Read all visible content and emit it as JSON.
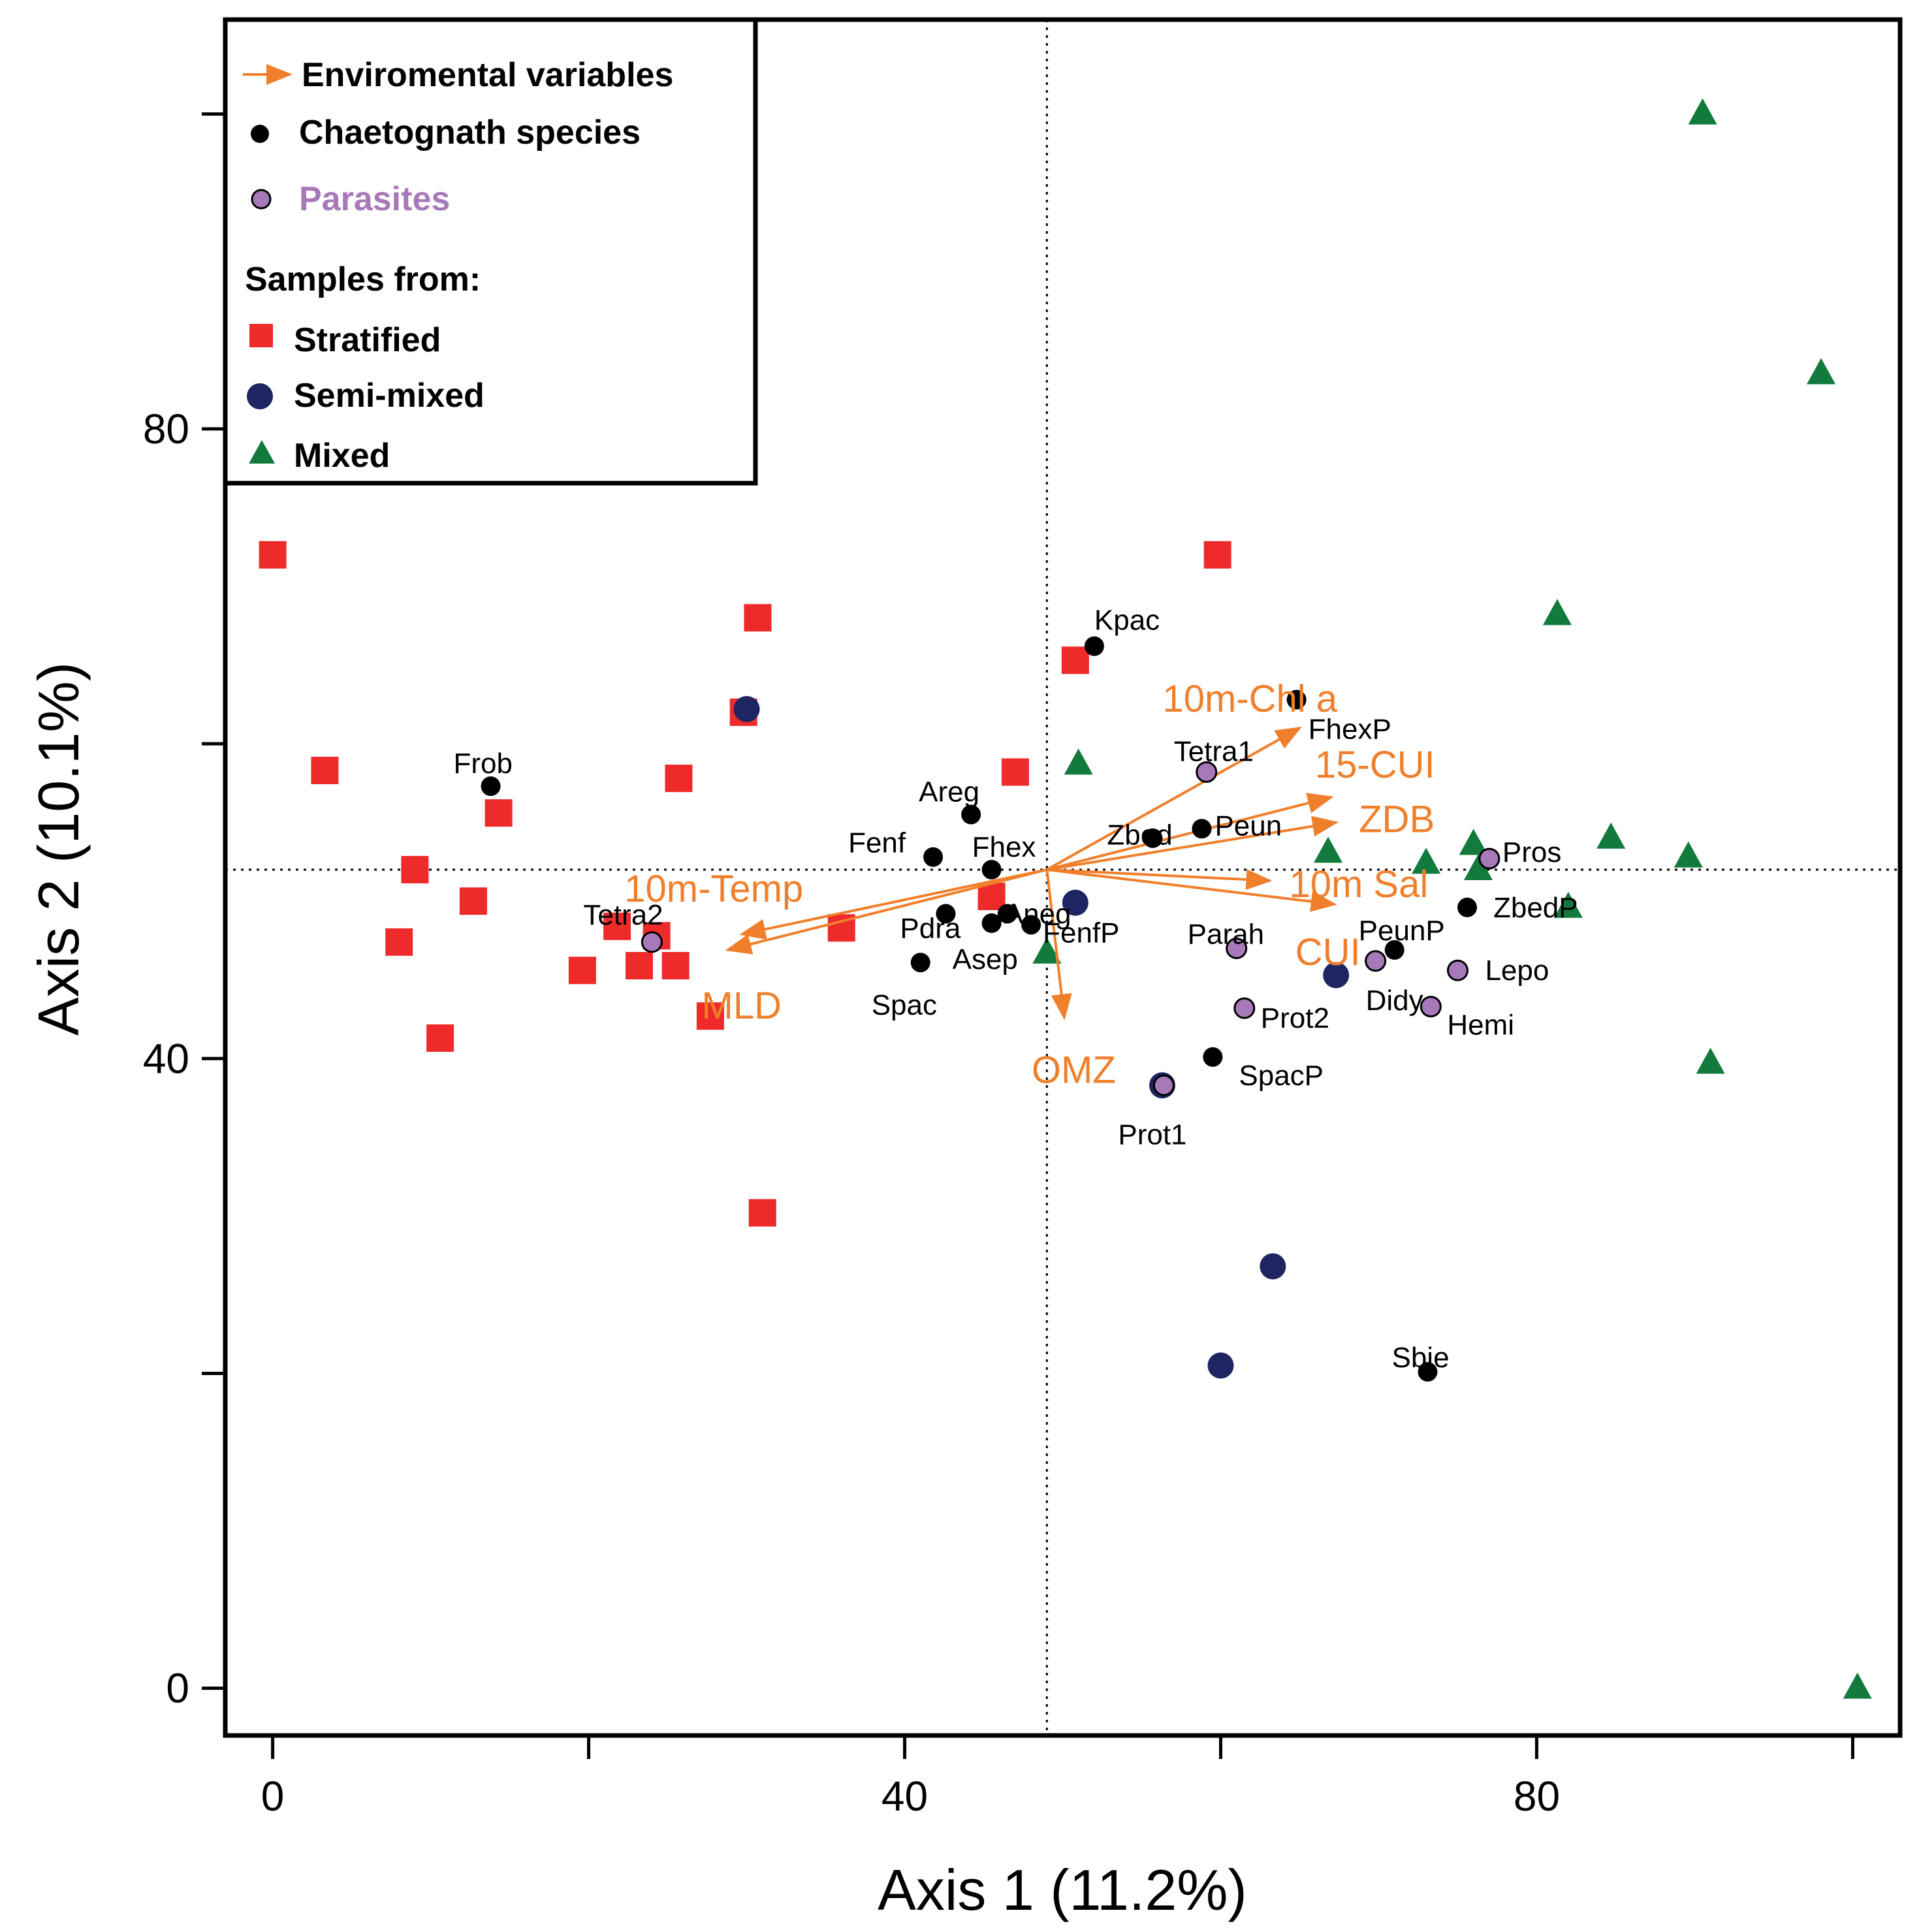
{
  "chart_data": {
    "type": "scatter",
    "xlabel": "Axis 1 (11.2%)",
    "ylabel": "Axis 2 (10.1%)",
    "xlim": [
      -3,
      103
    ],
    "ylim": [
      -3,
      106
    ],
    "x_ticks": [
      0,
      20,
      40,
      60,
      80,
      100
    ],
    "x_tick_labels": [
      "0",
      "",
      "40",
      "",
      "80",
      ""
    ],
    "y_ticks": [
      0,
      20,
      40,
      60,
      80,
      100
    ],
    "y_tick_labels": [
      "0",
      "",
      "40",
      "",
      "80",
      ""
    ],
    "reference_lines": {
      "x": 49,
      "y": 52
    },
    "legend": {
      "placement": "top-left",
      "items": [
        {
          "label": "Enviromental variables",
          "marker": "arrow",
          "color": "#f07f2b"
        },
        {
          "label": "Chaetognath species",
          "marker": "dot",
          "color": "#000000"
        },
        {
          "label": "Parasites",
          "marker": "parasite",
          "color": "#a879b8"
        }
      ],
      "samples_title": "Samples from:",
      "sample_items": [
        {
          "label": "Stratified",
          "marker": "square",
          "color": "#ee2a2a"
        },
        {
          "label": "Semi-mixed",
          "marker": "circle",
          "color": "#1f2561"
        },
        {
          "label": "Mixed",
          "marker": "triangle",
          "color": "#127a3c"
        }
      ]
    },
    "samples": {
      "Stratified": [
        [
          0,
          72
        ],
        [
          3.3,
          58.3
        ],
        [
          9,
          52
        ],
        [
          12.7,
          50
        ],
        [
          14.3,
          55.6
        ],
        [
          8,
          47.4
        ],
        [
          10.6,
          41.3
        ],
        [
          19.6,
          45.6
        ],
        [
          21.8,
          48.4
        ],
        [
          24.3,
          47.8
        ],
        [
          23.2,
          45.9
        ],
        [
          25.5,
          45.9
        ],
        [
          27.7,
          42.7
        ],
        [
          30.7,
          68
        ],
        [
          29.8,
          62
        ],
        [
          36,
          48.3
        ],
        [
          31,
          30.2
        ],
        [
          25.7,
          57.8
        ],
        [
          47,
          58.2
        ],
        [
          45.5,
          50.3
        ],
        [
          59.8,
          72
        ],
        [
          50.8,
          65.3
        ]
      ],
      "Semi-mixed": [
        [
          30,
          62.2
        ],
        [
          50.8,
          49.9
        ],
        [
          56.3,
          38.3
        ],
        [
          67.3,
          45.3
        ],
        [
          63.3,
          26.8
        ],
        [
          60,
          20.5
        ]
      ],
      "Mixed": [
        [
          90.5,
          100
        ],
        [
          98,
          83.5
        ],
        [
          81.3,
          68.2
        ],
        [
          51,
          58.7
        ],
        [
          66.8,
          53.1
        ],
        [
          73,
          52.4
        ],
        [
          76,
          53.6
        ],
        [
          76.3,
          52
        ],
        [
          84.7,
          54
        ],
        [
          89.6,
          52.8
        ],
        [
          82,
          49.6
        ],
        [
          49,
          46.7
        ],
        [
          91,
          39.7
        ],
        [
          100.3,
          0
        ]
      ]
    },
    "species": [
      {
        "name": "Kpac",
        "x": 52,
        "y": 66.2
      },
      {
        "name": "FhexP",
        "x": 64.8,
        "y": 62.8
      },
      {
        "name": "Frob",
        "x": 13.8,
        "y": 57.3
      },
      {
        "name": "Areg",
        "x": 44.2,
        "y": 55.5
      },
      {
        "name": "Zbed",
        "x": 55.7,
        "y": 54
      },
      {
        "name": "Peun",
        "x": 58.8,
        "y": 54.6
      },
      {
        "name": "Fenf",
        "x": 41.8,
        "y": 52.8
      },
      {
        "name": "Fhex",
        "x": 45.5,
        "y": 52
      },
      {
        "name": "Pdra",
        "x": 42.6,
        "y": 49.2
      },
      {
        "name": "Aneg",
        "x": 46.5,
        "y": 49.2
      },
      {
        "name": "Asep",
        "x": 45.5,
        "y": 48.6
      },
      {
        "name": "FenfP",
        "x": 48,
        "y": 48.5
      },
      {
        "name": "Spac",
        "x": 41,
        "y": 46.1
      },
      {
        "name": "PeunP",
        "x": 71,
        "y": 46.9
      },
      {
        "name": "ZbedP",
        "x": 75.6,
        "y": 49.6
      },
      {
        "name": "SpacP",
        "x": 59.5,
        "y": 40.1
      },
      {
        "name": "Sbie",
        "x": 73.1,
        "y": 20.1
      }
    ],
    "parasites": [
      {
        "name": "Tetra1",
        "x": 59.1,
        "y": 58.2
      },
      {
        "name": "Pros",
        "x": 77,
        "y": 52.7
      },
      {
        "name": "Tetra2",
        "x": 24,
        "y": 47.4
      },
      {
        "name": "Parah",
        "x": 61,
        "y": 47
      },
      {
        "name": "Didy",
        "x": 69.8,
        "y": 46.2
      },
      {
        "name": "Lepo",
        "x": 75,
        "y": 45.6
      },
      {
        "name": "Hemi",
        "x": 73.3,
        "y": 43.3
      },
      {
        "name": "Prot2",
        "x": 61.5,
        "y": 43.2
      },
      {
        "name": "Prot1",
        "x": 56.4,
        "y": 38.3
      }
    ],
    "env_variables": [
      {
        "name": "10m-Chl a",
        "x": 65.0,
        "y": 61.0
      },
      {
        "name": "15-CUI",
        "x": 67.0,
        "y": 56.6
      },
      {
        "name": "ZDB",
        "x": 67.3,
        "y": 55.0
      },
      {
        "name": "10m Sal",
        "x": 63.1,
        "y": 51.3
      },
      {
        "name": "CUI",
        "x": 67.2,
        "y": 49.8
      },
      {
        "name": "10m-Temp",
        "x": 29.7,
        "y": 47.9
      },
      {
        "name": "MLD",
        "x": 28.8,
        "y": 46.9
      },
      {
        "name": "OMZ",
        "x": 50.1,
        "y": 42.6
      }
    ]
  }
}
